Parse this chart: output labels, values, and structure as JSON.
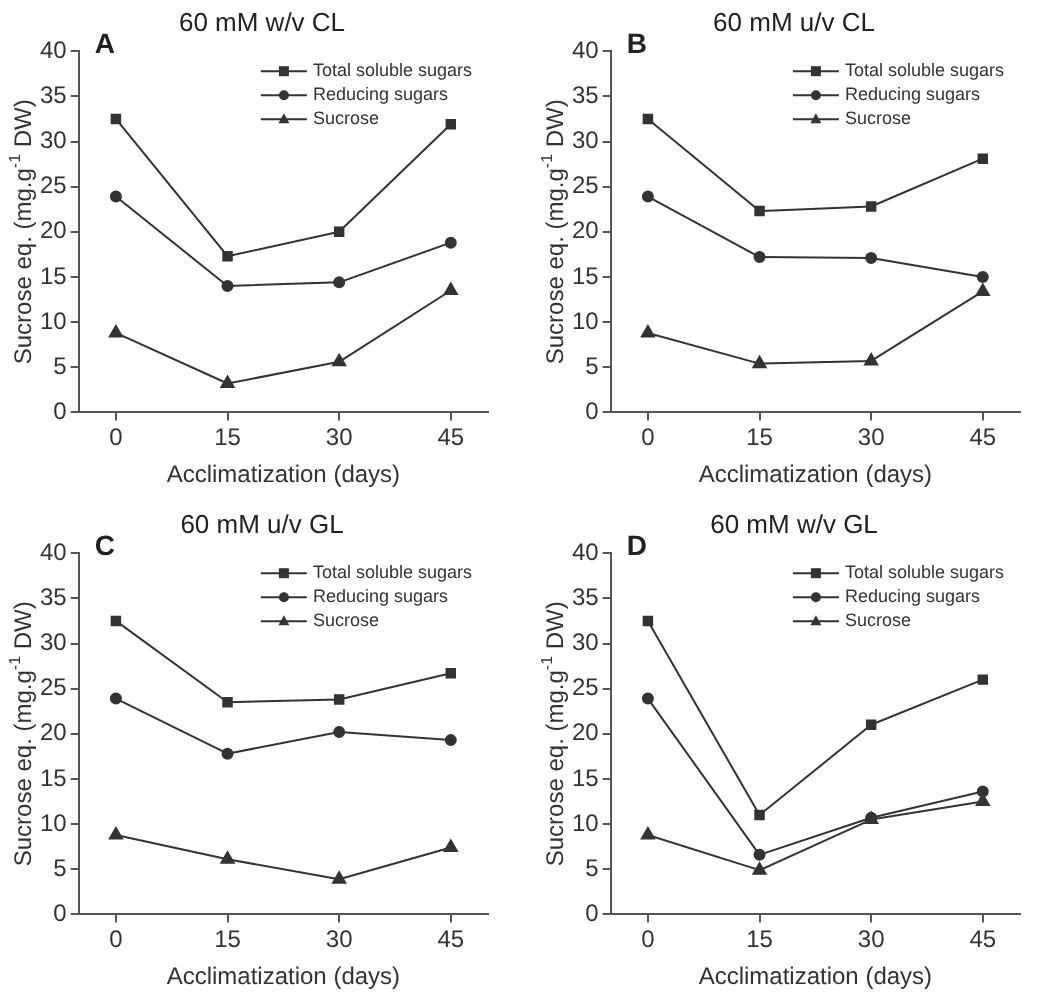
{
  "chart_data": [
    {
      "type": "line",
      "title": "60 mM w/v CL",
      "annotations": [
        "A"
      ],
      "xlabel": "Acclimatization (days)",
      "ylabel": "Sucrose eq. (mg.g$^{-1}$ DW)",
      "x": [
        0,
        15,
        30,
        45
      ],
      "xlim": [
        -5,
        50
      ],
      "xticks": [
        0,
        15,
        30,
        45
      ],
      "ylim": [
        0,
        40
      ],
      "yticks": [
        0,
        5,
        10,
        15,
        20,
        25,
        30,
        35,
        40
      ],
      "legend": "top right",
      "grid": false,
      "series": [
        {
          "name": "Total soluble sugars",
          "color": "#333333",
          "marker": "square",
          "values": [
            32.5,
            17.3,
            20,
            31.9
          ]
        },
        {
          "name": "Reducing sugars",
          "color": "#333333",
          "marker": "circle",
          "values": [
            23.9,
            14,
            14.4,
            18.8
          ]
        },
        {
          "name": "Sucrose",
          "color": "#333333",
          "marker": "triangle",
          "values": [
            8.8,
            3.2,
            5.6,
            13.5
          ]
        }
      ]
    },
    {
      "type": "line",
      "title": "60 mM u/v CL",
      "annotations": [
        "B"
      ],
      "xlabel": "Acclimatization (days)",
      "ylabel": "Sucrose eq. (mg.g$^{-1}$ DW)",
      "x": [
        0,
        15,
        30,
        45
      ],
      "xlim": [
        -5,
        50
      ],
      "xticks": [
        0,
        15,
        30,
        45
      ],
      "ylim": [
        0,
        40
      ],
      "yticks": [
        0,
        5,
        10,
        15,
        20,
        25,
        30,
        35,
        40
      ],
      "legend": "top right",
      "grid": false,
      "series": [
        {
          "name": "Total soluble sugars",
          "color": "#333333",
          "marker": "square",
          "values": [
            32.5,
            22.3,
            22.8,
            28.1
          ]
        },
        {
          "name": "Reducing sugars",
          "color": "#333333",
          "marker": "circle",
          "values": [
            23.9,
            17.2,
            17.1,
            15
          ]
        },
        {
          "name": "Sucrose",
          "color": "#333333",
          "marker": "triangle",
          "values": [
            8.8,
            5.4,
            5.7,
            13.4
          ]
        }
      ]
    },
    {
      "type": "line",
      "title": "60 mM u/v GL",
      "annotations": [
        "C"
      ],
      "xlabel": "Acclimatization (days)",
      "ylabel": "Sucrose eq. (mg.g$^{-1}$ DW)",
      "x": [
        0,
        15,
        30,
        45
      ],
      "xlim": [
        -5,
        50
      ],
      "xticks": [
        0,
        15,
        30,
        45
      ],
      "ylim": [
        0,
        40
      ],
      "yticks": [
        0,
        5,
        10,
        15,
        20,
        25,
        30,
        35,
        40
      ],
      "legend": "top right",
      "grid": false,
      "series": [
        {
          "name": "Total soluble sugars",
          "color": "#333333",
          "marker": "square",
          "values": [
            32.5,
            23.5,
            23.8,
            26.7
          ]
        },
        {
          "name": "Reducing sugars",
          "color": "#333333",
          "marker": "circle",
          "values": [
            23.9,
            17.8,
            20.2,
            19.3
          ]
        },
        {
          "name": "Sucrose",
          "color": "#333333",
          "marker": "triangle",
          "values": [
            8.8,
            6.1,
            3.9,
            7.4
          ]
        }
      ]
    },
    {
      "type": "line",
      "title": "60 mM w/v GL",
      "annotations": [
        "D"
      ],
      "xlabel": "Acclimatization (days)",
      "ylabel": "Sucrose eq. (mg.g$^{-1}$ DW)",
      "x": [
        0,
        15,
        30,
        45
      ],
      "xlim": [
        -5,
        50
      ],
      "xticks": [
        0,
        15,
        30,
        45
      ],
      "ylim": [
        0,
        40
      ],
      "yticks": [
        0,
        5,
        10,
        15,
        20,
        25,
        30,
        35,
        40
      ],
      "legend": "top right",
      "grid": false,
      "series": [
        {
          "name": "Total soluble sugars",
          "color": "#333333",
          "marker": "square",
          "values": [
            32.5,
            11,
            21,
            26
          ]
        },
        {
          "name": "Reducing sugars",
          "color": "#333333",
          "marker": "circle",
          "values": [
            23.9,
            6.6,
            10.7,
            13.6
          ]
        },
        {
          "name": "Sucrose",
          "color": "#333333",
          "marker": "triangle",
          "values": [
            8.8,
            4.9,
            10.5,
            12.5
          ]
        }
      ]
    }
  ]
}
